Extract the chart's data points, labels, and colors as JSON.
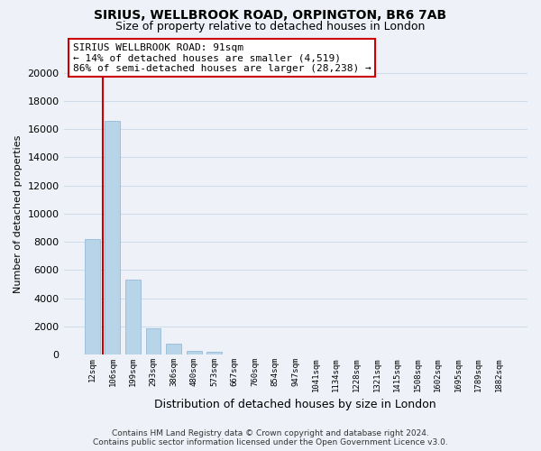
{
  "title": "SIRIUS, WELLBROOK ROAD, ORPINGTON, BR6 7AB",
  "subtitle": "Size of property relative to detached houses in London",
  "xlabel": "Distribution of detached houses by size in London",
  "ylabel": "Number of detached properties",
  "bar_labels": [
    "12sqm",
    "106sqm",
    "199sqm",
    "293sqm",
    "386sqm",
    "480sqm",
    "573sqm",
    "667sqm",
    "760sqm",
    "854sqm",
    "947sqm",
    "1041sqm",
    "1134sqm",
    "1228sqm",
    "1321sqm",
    "1415sqm",
    "1508sqm",
    "1602sqm",
    "1695sqm",
    "1789sqm",
    "1882sqm"
  ],
  "bar_heights": [
    8200,
    16600,
    5300,
    1850,
    800,
    300,
    200,
    0,
    0,
    0,
    0,
    0,
    0,
    0,
    0,
    0,
    0,
    0,
    0,
    0,
    0
  ],
  "bar_color": "#b8d4e8",
  "highlight_color": "#cc0000",
  "ylim": [
    0,
    20000
  ],
  "yticks": [
    0,
    2000,
    4000,
    6000,
    8000,
    10000,
    12000,
    14000,
    16000,
    18000,
    20000
  ],
  "annotation_line1": "SIRIUS WELLBROOK ROAD: 91sqm",
  "annotation_line2": "← 14% of detached houses are smaller (4,519)",
  "annotation_line3": "86% of semi-detached houses are larger (28,238) →",
  "annotation_box_color": "#ffffff",
  "annotation_box_edge_color": "#cc0000",
  "grid_color": "#d0dcec",
  "background_color": "#eef2f8",
  "footer_line1": "Contains HM Land Registry data © Crown copyright and database right 2024.",
  "footer_line2": "Contains public sector information licensed under the Open Government Licence v3.0."
}
